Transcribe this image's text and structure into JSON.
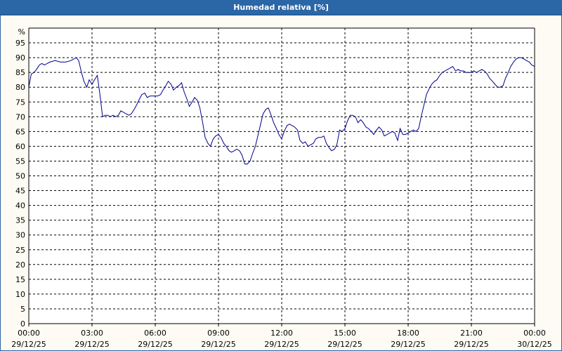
{
  "window": {
    "title": "Humedad relativa [%]"
  },
  "colors": {
    "title_bar": "#2b66a6",
    "line": "#00008b",
    "grid": "#000000",
    "background": "#fdfbf3"
  },
  "chart_data": {
    "type": "line",
    "title": "Humedad relativa [%]",
    "ylabel": "%",
    "xlabel": "",
    "ylim": [
      0,
      100
    ],
    "xlim": [
      "29/12/25 00:00",
      "30/12/25 00:00"
    ],
    "grid": true,
    "y_ticks": [
      "0",
      "5",
      "10",
      "15",
      "20",
      "25",
      "30",
      "35",
      "40",
      "45",
      "50",
      "55",
      "60",
      "65",
      "70",
      "75",
      "80",
      "85",
      "90",
      "95"
    ],
    "x_ticks": [
      {
        "time": "00:00",
        "date": "29/12/25"
      },
      {
        "time": "03:00",
        "date": "29/12/25"
      },
      {
        "time": "06:00",
        "date": "29/12/25"
      },
      {
        "time": "09:00",
        "date": "29/12/25"
      },
      {
        "time": "12:00",
        "date": "29/12/25"
      },
      {
        "time": "15:00",
        "date": "29/12/25"
      },
      {
        "time": "18:00",
        "date": "29/12/25"
      },
      {
        "time": "21:00",
        "date": "29/12/25"
      },
      {
        "time": "00:00",
        "date": "30/12/25"
      }
    ],
    "series": [
      {
        "values": [
          [
            "00:00",
            80.0
          ],
          [
            "00:07",
            84.5
          ],
          [
            "00:15",
            85.0
          ],
          [
            "00:22",
            86.0
          ],
          [
            "00:30",
            87.5
          ],
          [
            "00:37",
            88.0
          ],
          [
            "00:45",
            87.5
          ],
          [
            "00:52",
            88.0
          ],
          [
            "01:00",
            88.5
          ],
          [
            "01:15",
            89.0
          ],
          [
            "01:30",
            88.5
          ],
          [
            "01:45",
            88.5
          ],
          [
            "02:00",
            89.0
          ],
          [
            "02:15",
            90.0
          ],
          [
            "02:22",
            89.0
          ],
          [
            "02:30",
            85.0
          ],
          [
            "02:37",
            82.0
          ],
          [
            "02:45",
            80.0
          ],
          [
            "02:52",
            82.5
          ],
          [
            "03:00",
            81.0
          ],
          [
            "03:07",
            82.5
          ],
          [
            "03:15",
            84.0
          ],
          [
            "03:22",
            78.0
          ],
          [
            "03:30",
            70.0
          ],
          [
            "03:37",
            70.5
          ],
          [
            "03:45",
            70.5
          ],
          [
            "03:52",
            70.0
          ],
          [
            "04:00",
            70.5
          ],
          [
            "04:07",
            70.0
          ],
          [
            "04:15",
            70.5
          ],
          [
            "04:22",
            72.0
          ],
          [
            "04:30",
            71.5
          ],
          [
            "04:37",
            71.0
          ],
          [
            "04:45",
            70.5
          ],
          [
            "04:52",
            71.0
          ],
          [
            "05:00",
            72.5
          ],
          [
            "05:07",
            74.0
          ],
          [
            "05:15",
            76.0
          ],
          [
            "05:22",
            77.5
          ],
          [
            "05:30",
            78.0
          ],
          [
            "05:37",
            76.5
          ],
          [
            "05:45",
            77.0
          ],
          [
            "05:52",
            77.0
          ],
          [
            "06:00",
            77.0
          ],
          [
            "06:07",
            77.0
          ],
          [
            "06:15",
            77.5
          ],
          [
            "06:22",
            79.0
          ],
          [
            "06:30",
            80.5
          ],
          [
            "06:37",
            82.0
          ],
          [
            "06:45",
            81.0
          ],
          [
            "06:52",
            79.0
          ],
          [
            "07:00",
            80.0
          ],
          [
            "07:07",
            80.5
          ],
          [
            "07:15",
            81.5
          ],
          [
            "07:22",
            78.5
          ],
          [
            "07:30",
            76.0
          ],
          [
            "07:37",
            73.5
          ],
          [
            "07:45",
            75.0
          ],
          [
            "07:52",
            76.5
          ],
          [
            "08:00",
            75.5
          ],
          [
            "08:07",
            73.0
          ],
          [
            "08:15",
            68.0
          ],
          [
            "08:22",
            63.0
          ],
          [
            "08:30",
            61.0
          ],
          [
            "08:37",
            60.0
          ],
          [
            "08:45",
            62.5
          ],
          [
            "08:52",
            63.5
          ],
          [
            "09:00",
            64.0
          ],
          [
            "09:07",
            63.0
          ],
          [
            "09:15",
            61.0
          ],
          [
            "09:22",
            60.0
          ],
          [
            "09:30",
            58.5
          ],
          [
            "09:37",
            58.0
          ],
          [
            "09:45",
            58.5
          ],
          [
            "09:52",
            59.0
          ],
          [
            "10:00",
            58.5
          ],
          [
            "10:07",
            57.0
          ],
          [
            "10:15",
            54.0
          ],
          [
            "10:22",
            54.0
          ],
          [
            "10:30",
            55.0
          ],
          [
            "10:37",
            57.5
          ],
          [
            "10:45",
            60.0
          ],
          [
            "10:52",
            63.5
          ],
          [
            "11:00",
            67.5
          ],
          [
            "11:07",
            71.0
          ],
          [
            "11:15",
            72.5
          ],
          [
            "11:22",
            73.0
          ],
          [
            "11:30",
            70.5
          ],
          [
            "11:37",
            68.0
          ],
          [
            "11:45",
            66.0
          ],
          [
            "11:52",
            64.0
          ],
          [
            "12:00",
            62.5
          ],
          [
            "12:07",
            65.0
          ],
          [
            "12:15",
            67.0
          ],
          [
            "12:22",
            67.5
          ],
          [
            "12:30",
            67.0
          ],
          [
            "12:37",
            66.5
          ],
          [
            "12:45",
            65.5
          ],
          [
            "12:52",
            62.0
          ],
          [
            "13:00",
            61.0
          ],
          [
            "13:07",
            61.5
          ],
          [
            "13:15",
            60.0
          ],
          [
            "13:22",
            60.5
          ],
          [
            "13:30",
            61.0
          ],
          [
            "13:37",
            62.5
          ],
          [
            "13:45",
            63.0
          ],
          [
            "13:52",
            63.0
          ],
          [
            "14:00",
            63.5
          ],
          [
            "14:07",
            61.0
          ],
          [
            "14:15",
            59.5
          ],
          [
            "14:22",
            58.5
          ],
          [
            "14:30",
            59.0
          ],
          [
            "14:37",
            60.5
          ],
          [
            "14:45",
            65.5
          ],
          [
            "14:52",
            65.0
          ],
          [
            "15:00",
            66.0
          ],
          [
            "15:07",
            68.5
          ],
          [
            "15:15",
            70.5
          ],
          [
            "15:22",
            70.5
          ],
          [
            "15:30",
            70.0
          ],
          [
            "15:37",
            68.0
          ],
          [
            "15:45",
            69.0
          ],
          [
            "15:52",
            68.0
          ],
          [
            "16:00",
            66.5
          ],
          [
            "16:07",
            66.0
          ],
          [
            "16:15",
            65.0
          ],
          [
            "16:22",
            64.0
          ],
          [
            "16:30",
            65.5
          ],
          [
            "16:37",
            66.5
          ],
          [
            "16:45",
            65.5
          ],
          [
            "16:52",
            63.5
          ],
          [
            "17:00",
            64.0
          ],
          [
            "17:07",
            64.5
          ],
          [
            "17:15",
            65.0
          ],
          [
            "17:22",
            64.5
          ],
          [
            "17:30",
            62.0
          ],
          [
            "17:37",
            66.0
          ],
          [
            "17:45",
            64.0
          ],
          [
            "17:52",
            64.0
          ],
          [
            "18:00",
            64.5
          ],
          [
            "18:07",
            65.0
          ],
          [
            "18:15",
            65.5
          ],
          [
            "18:22",
            65.0
          ],
          [
            "18:30",
            66.0
          ],
          [
            "18:37",
            70.0
          ],
          [
            "18:45",
            74.0
          ],
          [
            "18:52",
            77.5
          ],
          [
            "19:00",
            79.5
          ],
          [
            "19:07",
            81.0
          ],
          [
            "19:15",
            82.0
          ],
          [
            "19:22",
            82.5
          ],
          [
            "19:30",
            84.0
          ],
          [
            "19:37",
            85.0
          ],
          [
            "19:45",
            85.5
          ],
          [
            "19:52",
            86.0
          ],
          [
            "20:00",
            86.5
          ],
          [
            "20:07",
            87.0
          ],
          [
            "20:15",
            85.5
          ],
          [
            "20:22",
            86.0
          ],
          [
            "20:30",
            85.5
          ],
          [
            "20:37",
            85.5
          ],
          [
            "20:45",
            85.0
          ],
          [
            "20:52",
            85.0
          ],
          [
            "21:00",
            85.0
          ],
          [
            "21:07",
            85.5
          ],
          [
            "21:15",
            85.0
          ],
          [
            "21:22",
            85.5
          ],
          [
            "21:30",
            86.0
          ],
          [
            "21:37",
            85.5
          ],
          [
            "21:45",
            84.5
          ],
          [
            "21:52",
            83.0
          ],
          [
            "22:00",
            82.0
          ],
          [
            "22:07",
            81.0
          ],
          [
            "22:15",
            80.0
          ],
          [
            "22:22",
            80.0
          ],
          [
            "22:30",
            80.5
          ],
          [
            "22:37",
            83.0
          ],
          [
            "22:45",
            85.0
          ],
          [
            "22:52",
            87.0
          ],
          [
            "23:00",
            88.5
          ],
          [
            "23:07",
            89.5
          ],
          [
            "23:15",
            90.0
          ],
          [
            "23:22",
            90.0
          ],
          [
            "23:30",
            89.5
          ],
          [
            "23:37",
            89.0
          ],
          [
            "23:45",
            88.5
          ],
          [
            "23:52",
            87.5
          ],
          [
            "00:00",
            87.0
          ]
        ]
      }
    ]
  }
}
